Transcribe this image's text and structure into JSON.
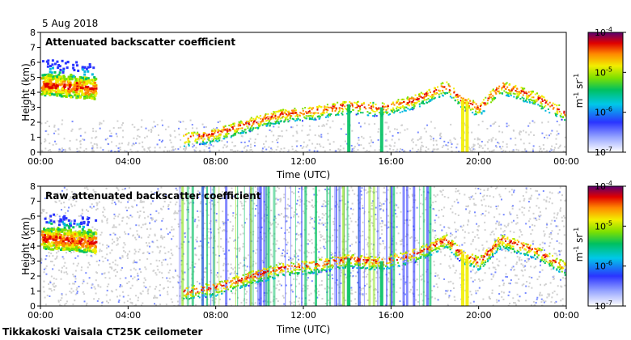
{
  "header": {
    "date": "5 Aug 2018"
  },
  "footer": {
    "caption": "Tikkakoski Vaisala CT25K ceilometer"
  },
  "chart_data": [
    {
      "type": "heatmap",
      "title": "Attenuated backscatter coefficient",
      "xlabel": "Time (UTC)",
      "ylabel": "Height (km)",
      "xlim_hours": [
        0,
        24
      ],
      "ylim_km": [
        0,
        8
      ],
      "xtick_labels": [
        "00:00",
        "04:00",
        "08:00",
        "12:00",
        "16:00",
        "20:00",
        "00:00"
      ],
      "ytick_labels": [
        "0",
        "1",
        "2",
        "3",
        "4",
        "5",
        "6",
        "7",
        "8"
      ],
      "cloud_layer": [
        {
          "t": 0.0,
          "h": 4.6
        },
        {
          "t": 2.5,
          "h": 4.3
        },
        {
          "t": 6.5,
          "h": 1.0
        },
        {
          "t": 8.0,
          "h": 1.3
        },
        {
          "t": 9.5,
          "h": 2.0
        },
        {
          "t": 11.0,
          "h": 2.6
        },
        {
          "t": 12.5,
          "h": 2.8
        },
        {
          "t": 14.0,
          "h": 3.2
        },
        {
          "t": 15.5,
          "h": 3.0
        },
        {
          "t": 17.0,
          "h": 3.5
        },
        {
          "t": 18.5,
          "h": 4.5
        },
        {
          "t": 19.2,
          "h": 3.5
        },
        {
          "t": 20.0,
          "h": 3.0
        },
        {
          "t": 21.0,
          "h": 4.5
        },
        {
          "t": 22.5,
          "h": 3.8
        },
        {
          "t": 24.0,
          "h": 2.6
        }
      ],
      "colorbar": {
        "scale": "log",
        "min": 1e-07,
        "max": 0.0001,
        "labels": [
          "10",
          "10",
          "10",
          "10"
        ],
        "exponents": [
          "-4",
          "-5",
          "-6",
          "-7"
        ],
        "unit": "m",
        "unit_exp": "-1",
        "unit2": " sr",
        "unit2_exp": "-1"
      }
    },
    {
      "type": "heatmap",
      "title": "Raw attenuated backscatter coefficient",
      "xlabel": "Time (UTC)",
      "ylabel": "Height (km)",
      "xlim_hours": [
        0,
        24
      ],
      "ylim_km": [
        0,
        8
      ],
      "xtick_labels": [
        "00:00",
        "04:00",
        "08:00",
        "12:00",
        "16:00",
        "20:00",
        "00:00"
      ],
      "ytick_labels": [
        "0",
        "1",
        "2",
        "3",
        "4",
        "5",
        "6",
        "7",
        "8"
      ],
      "cloud_layer": [
        {
          "t": 0.0,
          "h": 4.6
        },
        {
          "t": 2.5,
          "h": 4.3
        },
        {
          "t": 6.5,
          "h": 1.0
        },
        {
          "t": 8.0,
          "h": 1.3
        },
        {
          "t": 9.5,
          "h": 2.0
        },
        {
          "t": 11.0,
          "h": 2.6
        },
        {
          "t": 12.5,
          "h": 2.8
        },
        {
          "t": 14.0,
          "h": 3.2
        },
        {
          "t": 15.5,
          "h": 3.0
        },
        {
          "t": 17.0,
          "h": 3.5
        },
        {
          "t": 18.5,
          "h": 4.5
        },
        {
          "t": 19.2,
          "h": 3.5
        },
        {
          "t": 20.0,
          "h": 3.0
        },
        {
          "t": 21.0,
          "h": 4.5
        },
        {
          "t": 22.5,
          "h": 3.8
        },
        {
          "t": 24.0,
          "h": 2.6
        }
      ],
      "colorbar": {
        "scale": "log",
        "min": 1e-07,
        "max": 0.0001,
        "labels": [
          "10",
          "10",
          "10",
          "10"
        ],
        "exponents": [
          "-4",
          "-5",
          "-6",
          "-7"
        ],
        "unit": "m",
        "unit_exp": "-1",
        "unit2": " sr",
        "unit2_exp": "-1"
      }
    }
  ]
}
